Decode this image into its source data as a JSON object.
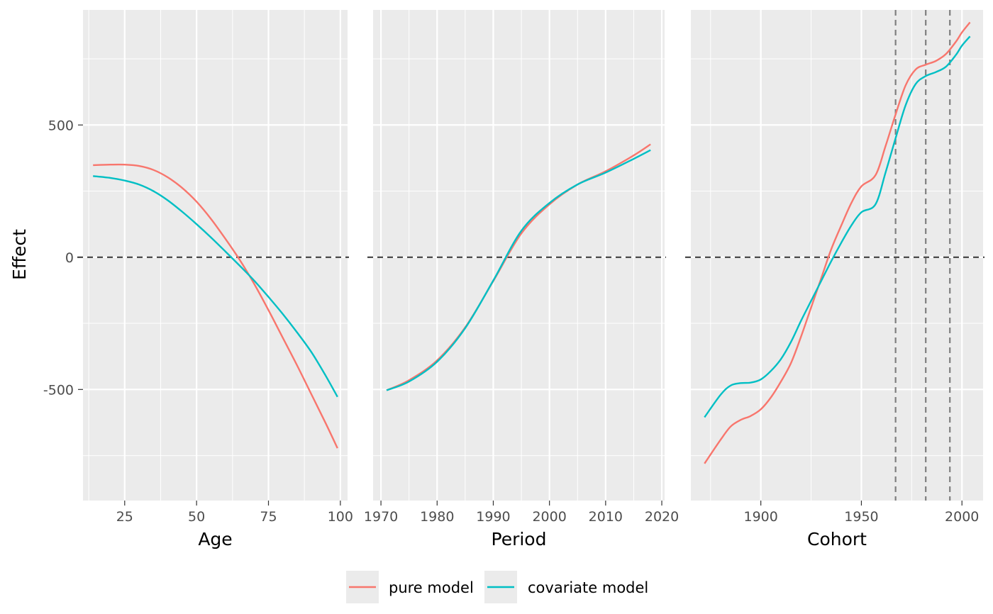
{
  "chart_data": {
    "type": "line",
    "ylabel": "Effect",
    "ylim": [
      -920,
      935
    ],
    "y_ticks": [
      -500,
      0,
      500
    ],
    "y_tick_labels": [
      "-500",
      "0",
      "500"
    ],
    "y_minor_ticks": [
      -750,
      -250,
      250,
      750
    ],
    "reference_line_y": 0,
    "colors": {
      "pure model": "#F8766D",
      "covariate model": "#00BFC4"
    },
    "legend": {
      "position": "bottom",
      "entries": [
        {
          "name": "pure model",
          "color": "#F8766D"
        },
        {
          "name": "covariate model",
          "color": "#00BFC4"
        }
      ]
    },
    "panels": [
      {
        "key": "age",
        "xlabel": "Age",
        "xlim": [
          10.5,
          102.5
        ],
        "x_ticks": [
          25,
          50,
          75,
          100
        ],
        "x_tick_labels": [
          "25",
          "50",
          "75",
          "100"
        ],
        "x_minor_ticks": [
          12.5,
          37.5,
          62.5,
          87.5
        ],
        "vlines": [],
        "series": [
          {
            "name": "pure model",
            "color": "#F8766D",
            "x": [
              14,
              20,
              25,
              30,
              35,
              40,
              45,
              50,
              55,
              60,
              65,
              70,
              75,
              80,
              85,
              90,
              95,
              99
            ],
            "y": [
              348,
              350,
              350,
              345,
              330,
              302,
              262,
              210,
              145,
              70,
              -10,
              -100,
              -200,
              -305,
              -410,
              -520,
              -630,
              -722
            ]
          },
          {
            "name": "covariate model",
            "color": "#00BFC4",
            "x": [
              14,
              20,
              25,
              30,
              35,
              40,
              45,
              50,
              55,
              60,
              65,
              70,
              75,
              80,
              85,
              90,
              95,
              99
            ],
            "y": [
              307,
              300,
              290,
              275,
              250,
              215,
              172,
              125,
              75,
              22,
              -32,
              -88,
              -150,
              -215,
              -285,
              -360,
              -450,
              -528
            ]
          }
        ]
      },
      {
        "key": "period",
        "xlabel": "Period",
        "xlim": [
          1968.6,
          2020.5
        ],
        "x_ticks": [
          1970,
          1980,
          1990,
          2000,
          2010,
          2020
        ],
        "x_tick_labels": [
          "1970",
          "1980",
          "1990",
          "2000",
          "2010",
          "2020"
        ],
        "x_minor_ticks": [
          1975,
          1985,
          1995,
          2005,
          2015
        ],
        "vlines": [],
        "series": [
          {
            "name": "pure model",
            "color": "#F8766D",
            "x": [
              1971,
              1975,
              1980,
              1985,
              1990,
              1995,
              2000,
              2005,
              2010,
              2015,
              2018
            ],
            "y": [
              -503,
              -465,
              -390,
              -265,
              -90,
              90,
              200,
              275,
              325,
              385,
              427
            ]
          },
          {
            "name": "covariate model",
            "color": "#00BFC4",
            "x": [
              1971,
              1975,
              1980,
              1985,
              1990,
              1995,
              2000,
              2005,
              2010,
              2015,
              2018
            ],
            "y": [
              -503,
              -470,
              -395,
              -268,
              -88,
              100,
              205,
              275,
              320,
              372,
              405
            ]
          }
        ]
      },
      {
        "key": "cohort",
        "xlabel": "Cohort",
        "xlim": [
          1865.2,
          2010.5
        ],
        "x_ticks": [
          1900,
          1950,
          2000
        ],
        "x_tick_labels": [
          "1900",
          "1950",
          "2000"
        ],
        "x_minor_ticks": [
          1875,
          1925,
          1975
        ],
        "vlines": [
          1967,
          1982,
          1994
        ],
        "series": [
          {
            "name": "pure model",
            "color": "#F8766D",
            "x": [
              1872,
              1880,
              1885,
              1890,
              1895,
              1900,
              1905,
              1910,
              1915,
              1920,
              1925,
              1930,
              1935,
              1940,
              1945,
              1950,
              1957,
              1962,
              1967,
              1972,
              1977,
              1982,
              1987,
              1992,
              1997,
              2000,
              2004
            ],
            "y": [
              -780,
              -690,
              -640,
              -615,
              -600,
              -575,
              -530,
              -470,
              -400,
              -300,
              -190,
              -80,
              30,
              120,
              205,
              268,
              310,
              420,
              540,
              650,
              710,
              728,
              742,
              768,
              815,
              850,
              888
            ]
          },
          {
            "name": "covariate model",
            "color": "#00BFC4",
            "x": [
              1872,
              1880,
              1885,
              1890,
              1895,
              1900,
              1905,
              1910,
              1915,
              1920,
              1925,
              1930,
              1935,
              1940,
              1945,
              1950,
              1957,
              1962,
              1967,
              1972,
              1977,
              1982,
              1987,
              1992,
              1997,
              2000,
              2004
            ],
            "y": [
              -605,
              -520,
              -485,
              -476,
              -474,
              -462,
              -430,
              -385,
              -320,
              -240,
              -165,
              -90,
              -15,
              55,
              120,
              170,
              200,
              320,
              450,
              575,
              655,
              685,
              700,
              720,
              765,
              800,
              835
            ]
          }
        ]
      }
    ]
  }
}
